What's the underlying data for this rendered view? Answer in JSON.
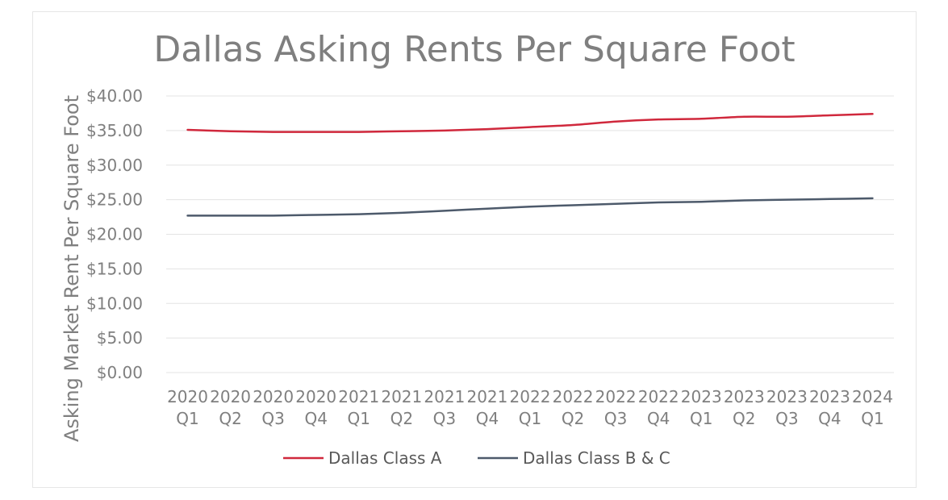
{
  "chart_data": {
    "type": "line",
    "title": "Dallas Asking Rents Per Square Foot",
    "xlabel": "",
    "ylabel": "Asking Market Rent Per Square Foot",
    "ylim": [
      0,
      40
    ],
    "yticks": [
      0,
      5,
      10,
      15,
      20,
      25,
      30,
      35,
      40
    ],
    "ytick_labels": [
      "$0.00",
      "$5.00",
      "$10.00",
      "$15.00",
      "$20.00",
      "$25.00",
      "$30.00",
      "$35.00",
      "$40.00"
    ],
    "grid": true,
    "legend_position": "bottom",
    "categories": [
      [
        "2020",
        "Q1"
      ],
      [
        "2020",
        "Q2"
      ],
      [
        "2020",
        "Q3"
      ],
      [
        "2020",
        "Q4"
      ],
      [
        "2021",
        "Q1"
      ],
      [
        "2021",
        "Q2"
      ],
      [
        "2021",
        "Q3"
      ],
      [
        "2021",
        "Q4"
      ],
      [
        "2022",
        "Q1"
      ],
      [
        "2022",
        "Q2"
      ],
      [
        "2022",
        "Q3"
      ],
      [
        "2022",
        "Q4"
      ],
      [
        "2023",
        "Q1"
      ],
      [
        "2023",
        "Q2"
      ],
      [
        "2023",
        "Q3"
      ],
      [
        "2023",
        "Q4"
      ],
      [
        "2024",
        "Q1"
      ]
    ],
    "series": [
      {
        "name": "Dallas Class A",
        "color": "#d0283c",
        "values": [
          35.1,
          34.9,
          34.8,
          34.8,
          34.8,
          34.9,
          35.0,
          35.2,
          35.5,
          35.8,
          36.3,
          36.6,
          36.7,
          37.0,
          37.0,
          37.2,
          37.4
        ]
      },
      {
        "name": "Dallas Class B & C",
        "color": "#4d5a6b",
        "values": [
          22.7,
          22.7,
          22.7,
          22.8,
          22.9,
          23.1,
          23.4,
          23.7,
          24.0,
          24.2,
          24.4,
          24.6,
          24.7,
          24.9,
          25.0,
          25.1,
          25.2
        ]
      }
    ]
  }
}
